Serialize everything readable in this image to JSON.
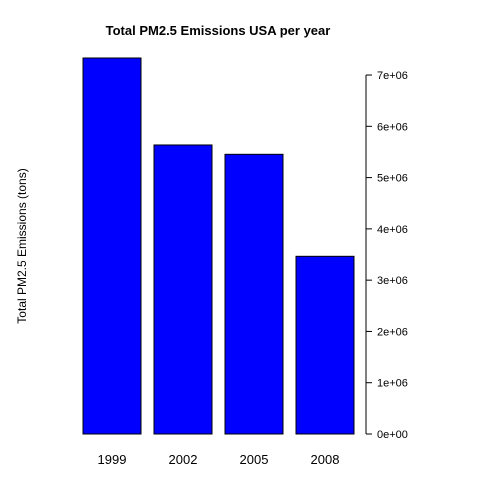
{
  "chart_data": {
    "type": "bar",
    "title": "Total PM2.5 Emissions USA per year",
    "xlabel": "",
    "ylabel": "Total PM2.5 Emissions (tons)",
    "categories": [
      "1999",
      "2002",
      "2005",
      "2008"
    ],
    "values": [
      7332000,
      5636000,
      5454000,
      3465000
    ],
    "ylim": [
      0,
      7332000
    ],
    "y_ticks": [
      0,
      1000000,
      2000000,
      3000000,
      4000000,
      5000000,
      6000000,
      7000000
    ],
    "y_tick_labels": [
      "0e+00",
      "1e+06",
      "2e+06",
      "3e+06",
      "4e+06",
      "5e+06",
      "6e+06",
      "7e+06"
    ],
    "y_axis_side": "right",
    "bar_color": "#0000ff",
    "bar_border_color": "#000000",
    "grid": false,
    "legend": "none"
  }
}
